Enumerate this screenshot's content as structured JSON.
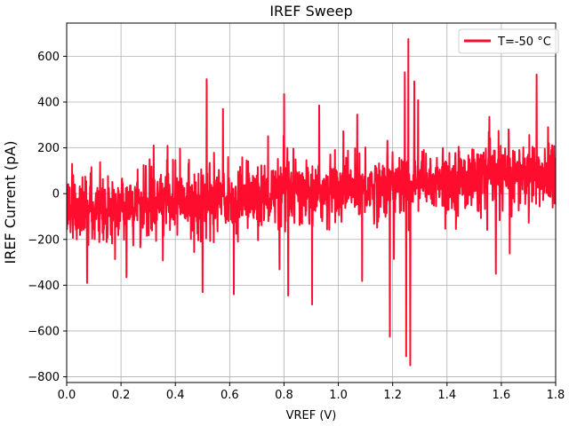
{
  "chart_data": {
    "type": "line",
    "title": "IREF Sweep",
    "xlabel": "VREF (V)",
    "ylabel": "IREF Current (pA)",
    "xlim": [
      0.0,
      1.8
    ],
    "ylim": [
      -825,
      745
    ],
    "xticks": [
      0.0,
      0.2,
      0.4,
      0.6,
      0.8,
      1.0,
      1.2,
      1.4,
      1.6,
      1.8
    ],
    "xtick_labels": [
      "0.0",
      "0.2",
      "0.4",
      "0.6",
      "0.8",
      "1.0",
      "1.2",
      "1.4",
      "1.6",
      "1.8"
    ],
    "yticks": [
      -800,
      -600,
      -400,
      -200,
      0,
      200,
      400,
      600
    ],
    "ytick_labels": [
      "−800",
      "−600",
      "−400",
      "−200",
      "0",
      "200",
      "400",
      "600"
    ],
    "grid": true,
    "legend_position": "top-right",
    "series": [
      {
        "name": "T=-50 °C",
        "color": "#ff0d2e",
        "noise_model": {
          "points": 1800,
          "trend_start": -75,
          "trend_end": 90,
          "noise_sd": 70
        },
        "spikes": [
          {
            "x": 0.02,
            "y": 130
          },
          {
            "x": 0.075,
            "y": -390
          },
          {
            "x": 0.22,
            "y": -365
          },
          {
            "x": 0.32,
            "y": 210
          },
          {
            "x": 0.5,
            "y": -430
          },
          {
            "x": 0.515,
            "y": 500
          },
          {
            "x": 0.575,
            "y": 370
          },
          {
            "x": 0.615,
            "y": -440
          },
          {
            "x": 0.8,
            "y": 435
          },
          {
            "x": 0.815,
            "y": -445
          },
          {
            "x": 0.93,
            "y": 385
          },
          {
            "x": 1.07,
            "y": 345
          },
          {
            "x": 1.19,
            "y": -625
          },
          {
            "x": 1.245,
            "y": 530
          },
          {
            "x": 1.25,
            "y": -710
          },
          {
            "x": 1.258,
            "y": 675
          },
          {
            "x": 1.265,
            "y": -750
          },
          {
            "x": 1.28,
            "y": 490
          },
          {
            "x": 1.58,
            "y": -350
          },
          {
            "x": 1.73,
            "y": 520
          }
        ]
      }
    ]
  }
}
